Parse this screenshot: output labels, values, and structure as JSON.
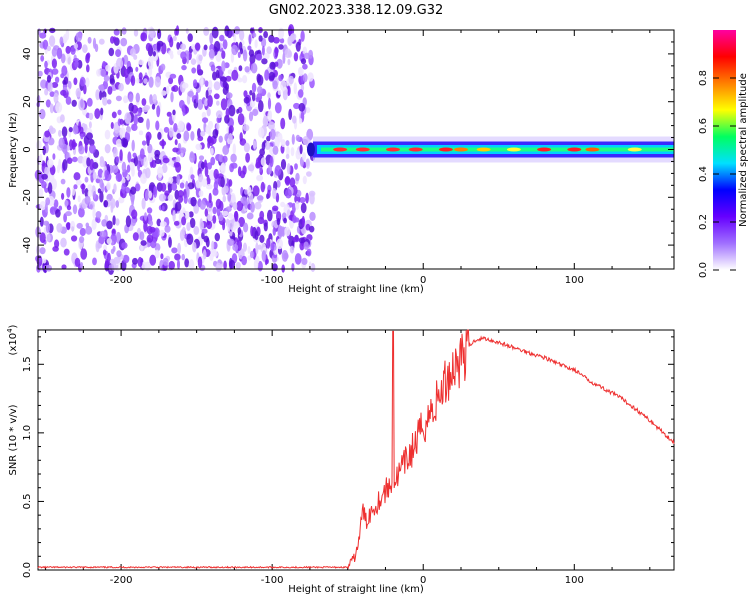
{
  "title": "GN02.2023.338.12.09.G32",
  "chart_data": [
    {
      "type": "heatmap",
      "panel": "spectrogram",
      "xlabel": "Height of straight line (km)",
      "ylabel": "Frequency (Hz)",
      "xlim": [
        -255,
        166
      ],
      "ylim": [
        -50,
        50
      ],
      "xticks": [
        -200,
        -100,
        0,
        100
      ],
      "yticks": [
        -40,
        -20,
        0,
        20,
        40
      ],
      "noise_region_x": [
        -255,
        -73
      ],
      "signal_region_x": [
        -73,
        166
      ],
      "signal_frequency_hz": 0,
      "colorbar": {
        "label": "Normalized spectral amplitude",
        "range": [
          0.0,
          1.0
        ],
        "ticks": [
          "0.0",
          "0.2",
          "0.4",
          "0.6",
          "0.8"
        ],
        "colormap": [
          "#ffffff",
          "#a070ff",
          "#6600ff",
          "#0000ff",
          "#00e0ff",
          "#00ff60",
          "#ffff00",
          "#ff8000",
          "#ff0000",
          "#ff00a0"
        ]
      }
    },
    {
      "type": "line",
      "panel": "snr",
      "xlabel": "Height of straight line (km)",
      "ylabel": "SNR (10 * v/v)",
      "scale_label": "(x10",
      "scale_exponent": "4",
      "xlim": [
        -255,
        166
      ],
      "ylim": [
        0,
        1.75
      ],
      "xticks": [
        -200,
        -100,
        0,
        100
      ],
      "yticks": [
        "0.0",
        "0.5",
        "1.0",
        "1.5"
      ],
      "color": "#ee3030",
      "series": [
        {
          "x": [
            -255,
            -100,
            -60,
            -50,
            -45,
            -42,
            -40,
            -38,
            -35,
            -30,
            -25,
            -20,
            -15,
            -10,
            -5,
            0,
            5,
            10,
            15,
            20,
            25,
            30,
            35,
            40,
            50,
            60,
            80,
            90,
            100,
            110,
            120,
            130,
            140,
            150,
            160,
            166
          ],
          "y": [
            0.02,
            0.02,
            0.02,
            0.02,
            0.1,
            0.25,
            0.45,
            0.35,
            0.42,
            0.5,
            0.58,
            0.62,
            0.72,
            0.82,
            0.92,
            1.05,
            1.15,
            1.25,
            1.38,
            1.48,
            1.55,
            1.63,
            1.68,
            1.69,
            1.66,
            1.62,
            1.55,
            1.5,
            1.46,
            1.38,
            1.32,
            1.26,
            1.18,
            1.09,
            0.99,
            0.93
          ]
        }
      ]
    }
  ]
}
